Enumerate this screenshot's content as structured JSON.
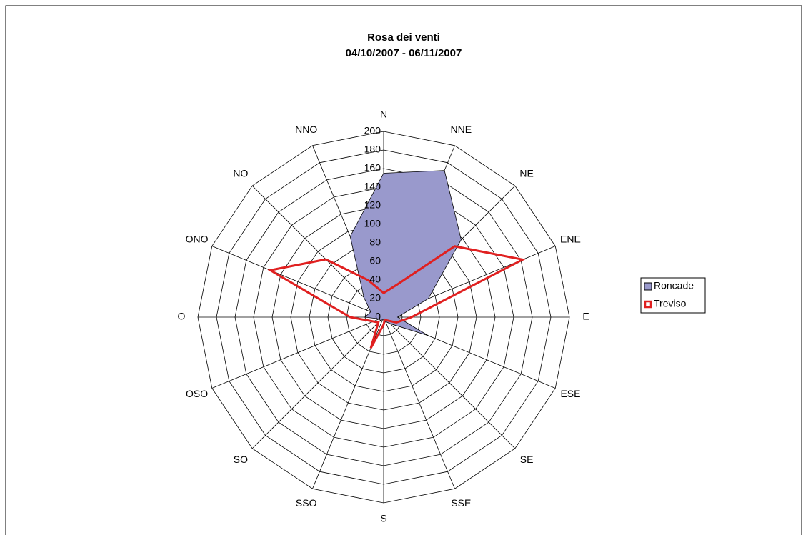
{
  "chart_data": {
    "type": "radar",
    "title": "Rosa dei venti",
    "subtitle": "04/10/2007 - 06/11/2007",
    "categories": [
      "N",
      "NNE",
      "NE",
      "ENE",
      "E",
      "ESE",
      "SE",
      "SSE",
      "S",
      "SSO",
      "SO",
      "OSO",
      "O",
      "ONO",
      "NO",
      "NNO"
    ],
    "series": [
      {
        "name": "Roncade",
        "color": "#9999cc",
        "values": [
          155,
          171,
          118,
          52,
          15,
          52,
          10,
          5,
          3,
          3,
          5,
          5,
          20,
          15,
          30,
          94
        ]
      },
      {
        "name": "Treviso",
        "color": "#e02020",
        "values": [
          26,
          38,
          108,
          162,
          30,
          15,
          5,
          3,
          8,
          36,
          8,
          12,
          36,
          132,
          88,
          43
        ]
      }
    ],
    "ylim": [
      0,
      200
    ],
    "yticks": [
      0,
      20,
      40,
      60,
      80,
      100,
      120,
      140,
      160,
      180,
      200
    ],
    "grid": true,
    "legend": "right"
  }
}
